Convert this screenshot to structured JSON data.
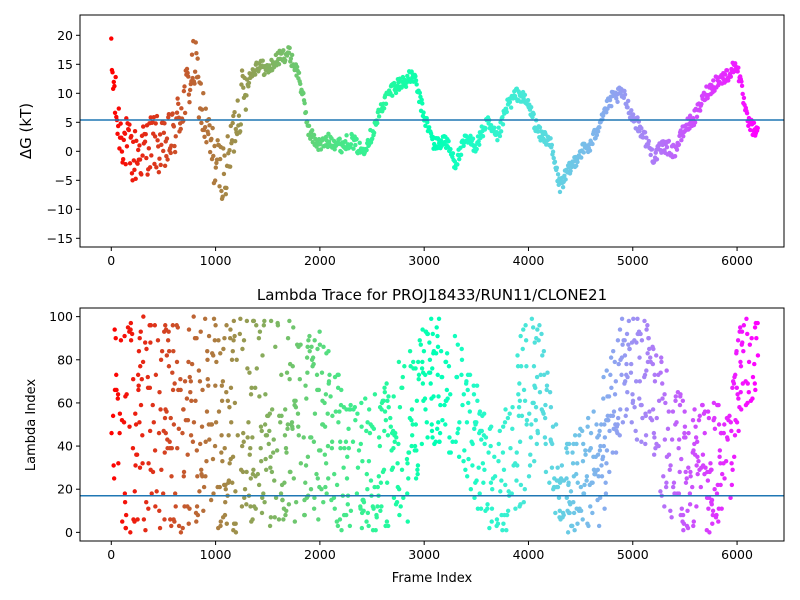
{
  "chart_data": [
    {
      "type": "scatter",
      "title": "",
      "xlabel": "",
      "ylabel": "ΔG (kT)",
      "xlim": [
        -300,
        6450
      ],
      "ylim": [
        -16.5,
        23.5
      ],
      "xticks": [
        0,
        1000,
        2000,
        3000,
        4000,
        5000,
        6000
      ],
      "yticks": [
        -15,
        -10,
        -5,
        0,
        5,
        10,
        15,
        20
      ],
      "hline": 5.4,
      "colormap": "rainbow",
      "color_domain": [
        0,
        6200
      ],
      "grid": false,
      "series_knots": [
        [
          0,
          15
        ],
        [
          60,
          5
        ],
        [
          120,
          2
        ],
        [
          200,
          -1
        ],
        [
          300,
          0
        ],
        [
          400,
          2
        ],
        [
          500,
          0
        ],
        [
          600,
          3
        ],
        [
          700,
          9
        ],
        [
          800,
          15
        ],
        [
          900,
          4
        ],
        [
          1000,
          -2
        ],
        [
          1100,
          -4
        ],
        [
          1200,
          6
        ],
        [
          1300,
          12
        ],
        [
          1400,
          15
        ],
        [
          1500,
          14
        ],
        [
          1600,
          16
        ],
        [
          1700,
          17
        ],
        [
          1800,
          13
        ],
        [
          1900,
          3
        ],
        [
          2000,
          1
        ],
        [
          2100,
          2
        ],
        [
          2200,
          1
        ],
        [
          2300,
          2
        ],
        [
          2400,
          0
        ],
        [
          2500,
          3
        ],
        [
          2600,
          8
        ],
        [
          2700,
          11
        ],
        [
          2800,
          12
        ],
        [
          2900,
          13
        ],
        [
          3000,
          6
        ],
        [
          3100,
          1
        ],
        [
          3200,
          2
        ],
        [
          3300,
          -2
        ],
        [
          3400,
          2
        ],
        [
          3500,
          1
        ],
        [
          3600,
          5
        ],
        [
          3700,
          2
        ],
        [
          3800,
          8
        ],
        [
          3900,
          10
        ],
        [
          4000,
          8
        ],
        [
          4100,
          3
        ],
        [
          4200,
          2
        ],
        [
          4300,
          -6
        ],
        [
          4400,
          -3
        ],
        [
          4500,
          0
        ],
        [
          4600,
          1
        ],
        [
          4700,
          6
        ],
        [
          4800,
          9
        ],
        [
          4900,
          10
        ],
        [
          5000,
          6
        ],
        [
          5100,
          3
        ],
        [
          5200,
          -1
        ],
        [
          5300,
          1
        ],
        [
          5400,
          0
        ],
        [
          5500,
          4
        ],
        [
          5600,
          6
        ],
        [
          5700,
          10
        ],
        [
          5800,
          12
        ],
        [
          5900,
          13
        ],
        [
          6000,
          15
        ],
        [
          6100,
          5
        ],
        [
          6200,
          3
        ]
      ]
    },
    {
      "type": "scatter",
      "title": "Lambda Trace for PROJ18433/RUN11/CLONE21",
      "xlabel": "Frame Index",
      "ylabel": "Lambda Index",
      "xlim": [
        -300,
        6450
      ],
      "ylim": [
        -4,
        104
      ],
      "xticks": [
        0,
        1000,
        2000,
        3000,
        4000,
        5000,
        6000
      ],
      "yticks": [
        0,
        20,
        40,
        60,
        80,
        100
      ],
      "hline": 17,
      "colormap": "rainbow",
      "color_domain": [
        0,
        6200
      ],
      "grid": false,
      "series_bands": [
        [
          0,
          0,
          100
        ],
        [
          300,
          0,
          100
        ],
        [
          900,
          0,
          100
        ],
        [
          1300,
          0,
          100
        ],
        [
          1700,
          5,
          100
        ],
        [
          2000,
          0,
          95
        ],
        [
          2300,
          0,
          60
        ],
        [
          2600,
          0,
          70
        ],
        [
          2850,
          5,
          90
        ],
        [
          3000,
          40,
          100
        ],
        [
          3200,
          40,
          100
        ],
        [
          3400,
          25,
          95
        ],
        [
          3600,
          0,
          50
        ],
        [
          3800,
          0,
          60
        ],
        [
          3950,
          10,
          100
        ],
        [
          4100,
          40,
          100
        ],
        [
          4300,
          0,
          40
        ],
        [
          4500,
          0,
          50
        ],
        [
          4700,
          0,
          70
        ],
        [
          4900,
          50,
          100
        ],
        [
          5100,
          40,
          100
        ],
        [
          5300,
          10,
          80
        ],
        [
          5500,
          0,
          60
        ],
        [
          5700,
          0,
          60
        ],
        [
          5900,
          0,
          60
        ],
        [
          6050,
          60,
          100
        ],
        [
          6200,
          55,
          100
        ]
      ]
    }
  ]
}
